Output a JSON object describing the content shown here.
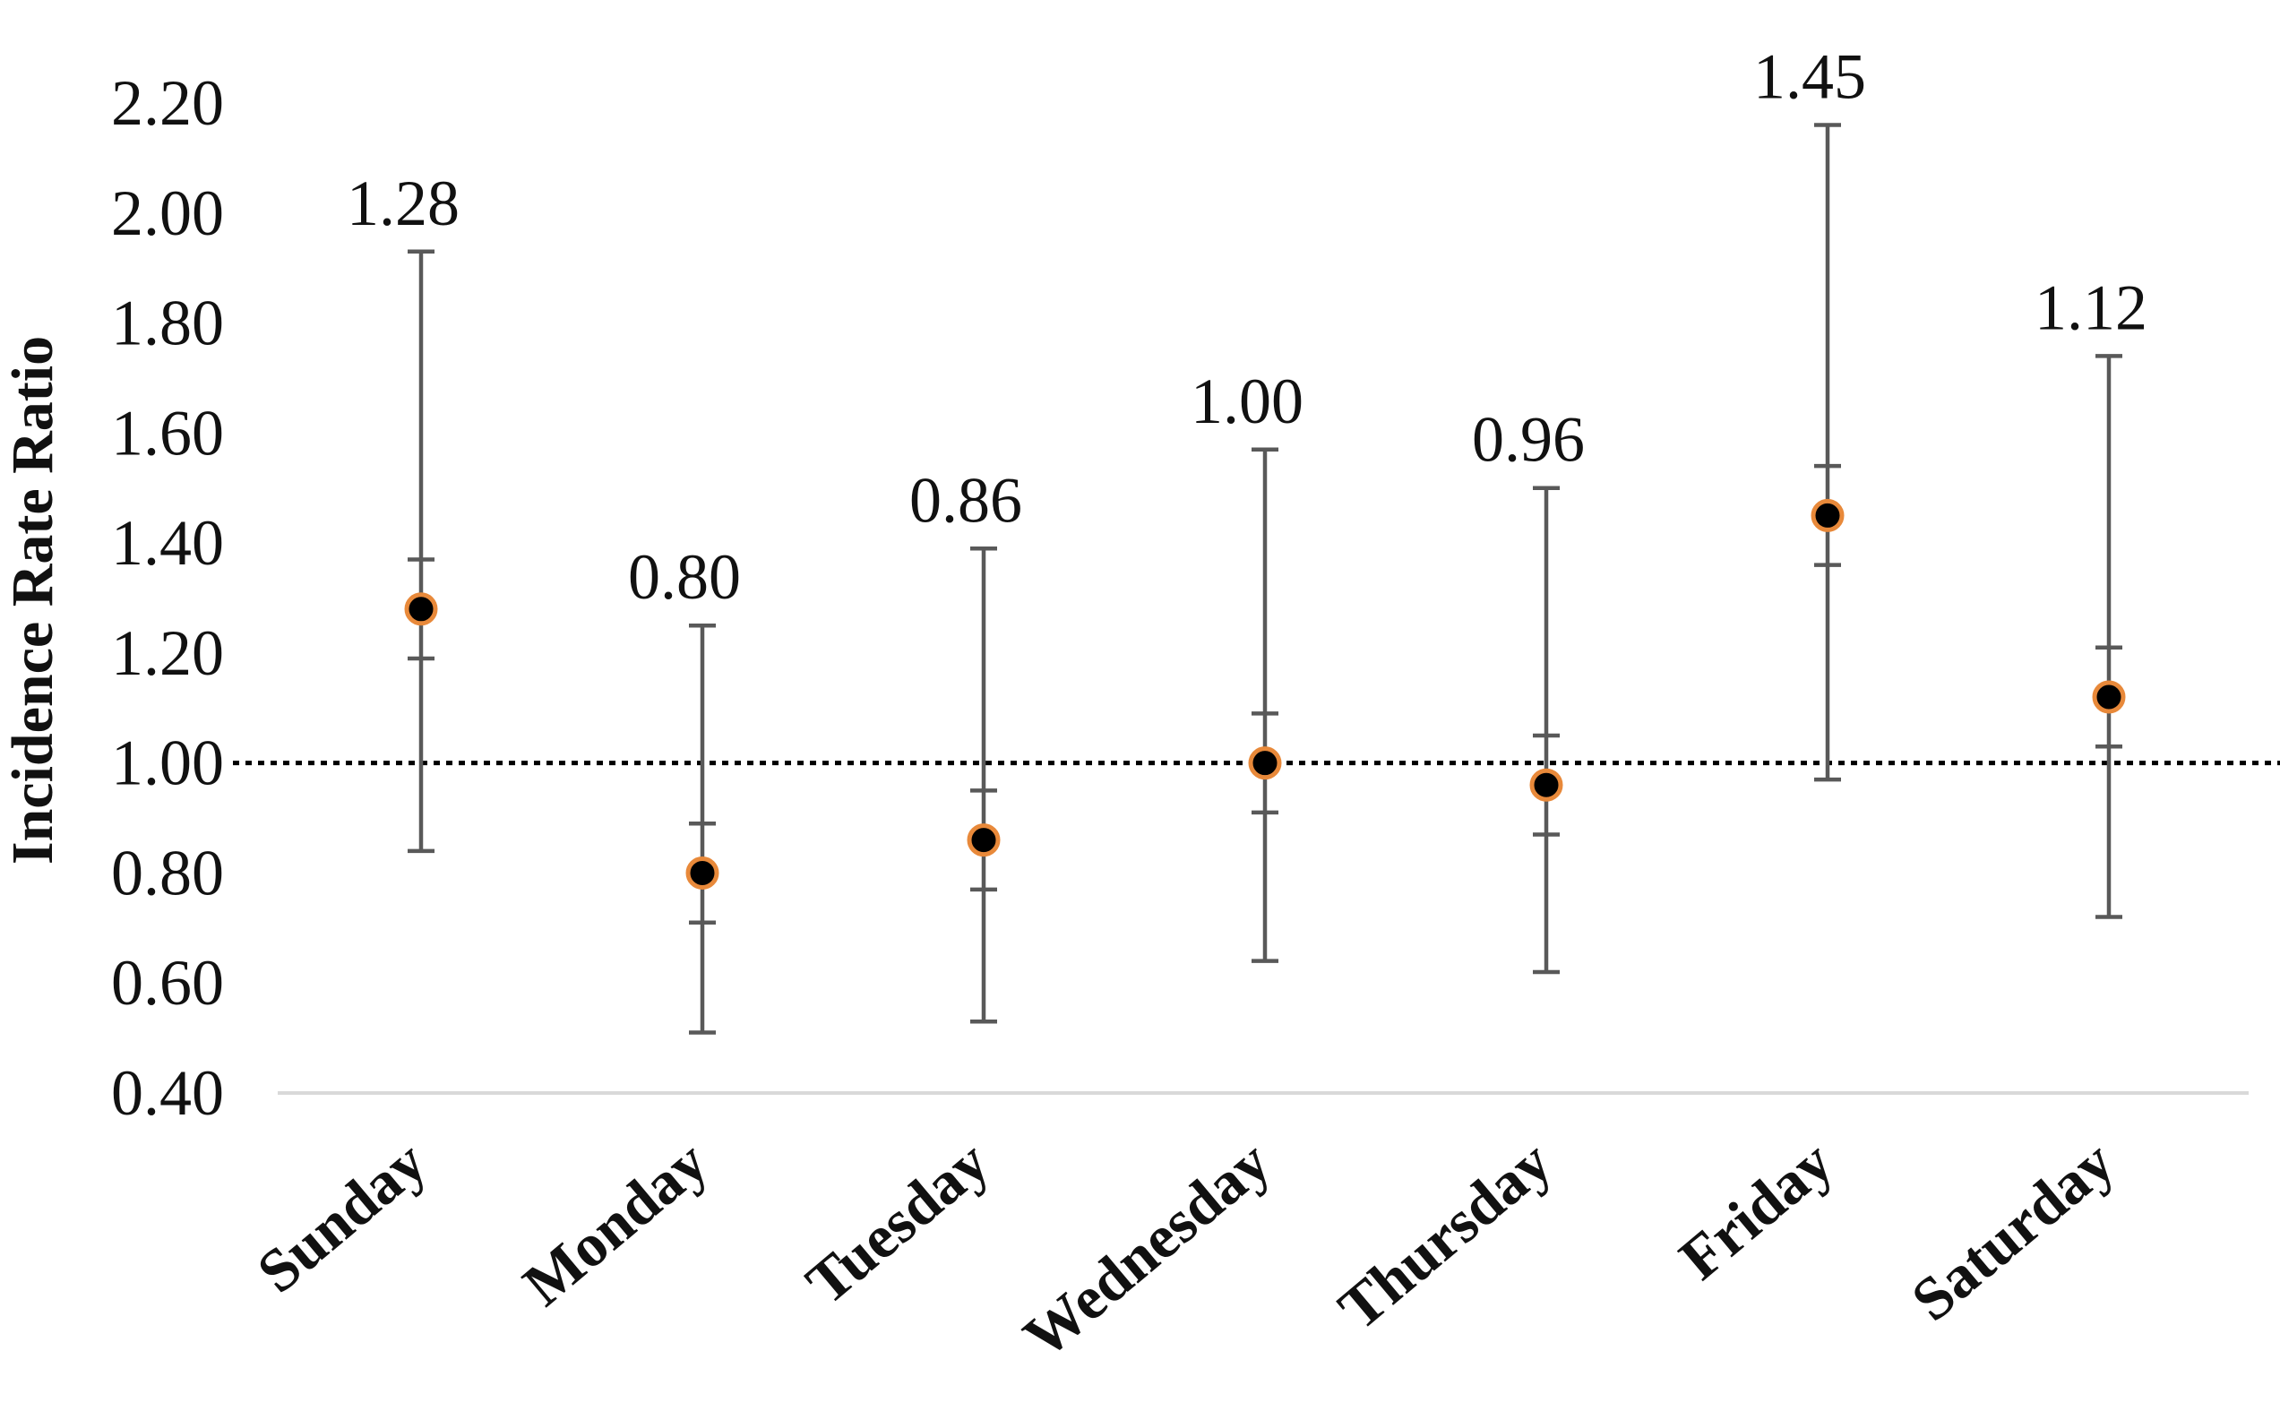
{
  "chart_data": {
    "type": "scatter",
    "title": "",
    "xlabel": "",
    "ylabel": "Incidence Rate Ratio",
    "ylim": [
      0.4,
      2.2
    ],
    "yticks": [
      0.4,
      0.6,
      0.8,
      1.0,
      1.2,
      1.4,
      1.6,
      1.8,
      2.0,
      2.2
    ],
    "ytick_labels": [
      "0.40",
      "0.60",
      "0.80",
      "1.00",
      "1.20",
      "1.40",
      "1.60",
      "1.80",
      "2.00",
      "2.20"
    ],
    "reference_line": 1.0,
    "categories": [
      "Sunday",
      "Monday",
      "Tuesday",
      "Wednesday",
      "Thursday",
      "Friday",
      "Saturday"
    ],
    "values": [
      1.28,
      0.8,
      0.86,
      1.0,
      0.96,
      1.45,
      1.12
    ],
    "value_labels": [
      "1.28",
      "0.80",
      "0.86",
      "1.00",
      "0.96",
      "1.45",
      "1.12"
    ],
    "ci_outer_lower": [
      0.84,
      0.51,
      0.53,
      0.64,
      0.62,
      0.97,
      0.72
    ],
    "ci_outer_upper": [
      1.93,
      1.25,
      1.39,
      1.57,
      1.5,
      2.16,
      1.74
    ],
    "ci_inner_lower": [
      1.19,
      0.71,
      0.77,
      0.91,
      0.87,
      1.36,
      1.03
    ],
    "ci_inner_upper": [
      1.37,
      0.89,
      0.95,
      1.09,
      1.05,
      1.54,
      1.21
    ],
    "grid": false,
    "colors": {
      "marker_fill": "#000000",
      "marker_stroke": "#E8893A",
      "error_bar": "#595959",
      "baseline": "#d9d9d9",
      "reference": "#000000",
      "text": "#111111"
    }
  }
}
